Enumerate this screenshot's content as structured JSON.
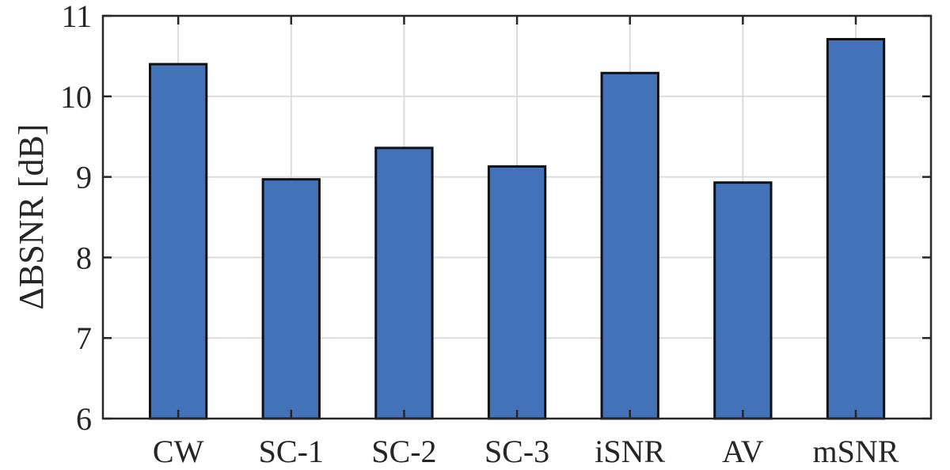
{
  "chart_data": {
    "type": "bar",
    "categories": [
      "CW",
      "SC-1",
      "SC-2",
      "SC-3",
      "iSNR",
      "AV",
      "mSNR"
    ],
    "values": [
      10.4,
      8.97,
      9.36,
      9.13,
      10.29,
      8.93,
      10.71
    ],
    "title": "",
    "xlabel": "",
    "ylabel": "ΔBSNR [dB]",
    "ylim": [
      6,
      11
    ],
    "yticks": [
      "6",
      "7",
      "8",
      "9",
      "10",
      "11"
    ],
    "grid": true,
    "bar_color": "#4372b9",
    "edge_color": "#111111"
  }
}
